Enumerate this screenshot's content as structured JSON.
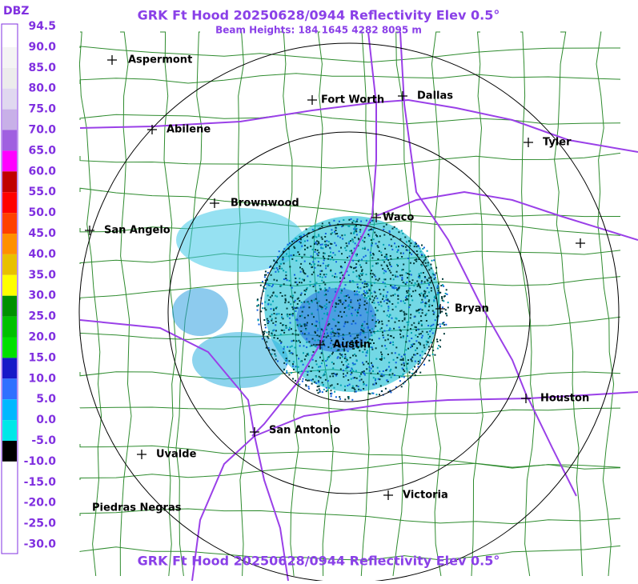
{
  "header": {
    "title": "GRK Ft Hood 20250628/0944 Reflectivity Elev 0.5°",
    "subtitle": "Beam Heights: 184 1645 4282 8095 m",
    "footer": "GRK Ft Hood 20250628/0944 Reflectivity Elev 0.5°"
  },
  "legend": {
    "unit": "DBZ",
    "labels": [
      "94.5",
      "90.0",
      "85.0",
      "80.0",
      "75.0",
      "70.0",
      "65.0",
      "60.0",
      "55.0",
      "50.0",
      "45.0",
      "40.0",
      "35.0",
      "30.0",
      "25.0",
      "20.0",
      "15.0",
      "10.0",
      "5.0",
      "0.0",
      "-5.0",
      "-10.0",
      "-15.0",
      "-20.0",
      "-25.0",
      "-30.0"
    ],
    "colors": [
      "#ffffff",
      "#f4f4f4",
      "#ececec",
      "#e0d8f0",
      "#c8b0e8",
      "#a060e0",
      "#ff00ff",
      "#c00000",
      "#ff0000",
      "#ff4000",
      "#ff9000",
      "#e8c000",
      "#ffff00",
      "#009000",
      "#00c000",
      "#00e000",
      "#1818c8",
      "#3070ff",
      "#00b8ff",
      "#00e8e8",
      "#000000",
      "#ffffff",
      "#ffffff",
      "#ffffff",
      "#ffffff"
    ]
  },
  "cities": [
    {
      "label": "Aspermont"
    },
    {
      "label": "Fort Worth"
    },
    {
      "label": "Dallas"
    },
    {
      "label": "Abilene"
    },
    {
      "label": "Tyler"
    },
    {
      "label": "Brownwood"
    },
    {
      "label": "Waco"
    },
    {
      "label": "San Angelo"
    },
    {
      "label": "Bryan"
    },
    {
      "label": "Austin"
    },
    {
      "label": "Houston"
    },
    {
      "label": "San Antonio"
    },
    {
      "label": "Uvalde"
    },
    {
      "label": "Victoria"
    },
    {
      "label": "Piedras Negras"
    }
  ]
}
